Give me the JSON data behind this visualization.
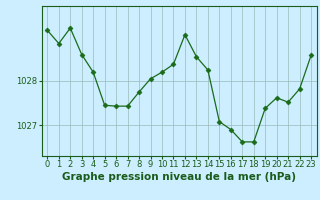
{
  "x": [
    0,
    1,
    2,
    3,
    4,
    5,
    6,
    7,
    8,
    9,
    10,
    11,
    12,
    13,
    14,
    15,
    16,
    17,
    18,
    19,
    20,
    21,
    22,
    23
  ],
  "y": [
    1029.15,
    1028.85,
    1029.2,
    1028.6,
    1028.2,
    1027.45,
    1027.43,
    1027.43,
    1027.75,
    1028.05,
    1028.2,
    1028.38,
    1029.05,
    1028.55,
    1028.25,
    1027.08,
    1026.9,
    1026.62,
    1026.62,
    1027.38,
    1027.62,
    1027.52,
    1027.82,
    1028.58
  ],
  "line_color": "#1a6b1a",
  "marker": "D",
  "marker_size": 2.5,
  "bg_color": "#cceeff",
  "grid_color": "#99bbbb",
  "xlabel": "Graphe pression niveau de la mer (hPa)",
  "xlabel_fontsize": 7.5,
  "tick_fontsize": 6,
  "yticks": [
    1027,
    1028
  ],
  "ylim": [
    1026.3,
    1029.7
  ],
  "xlim": [
    -0.5,
    23.5
  ],
  "axis_color": "#1a5c1a"
}
